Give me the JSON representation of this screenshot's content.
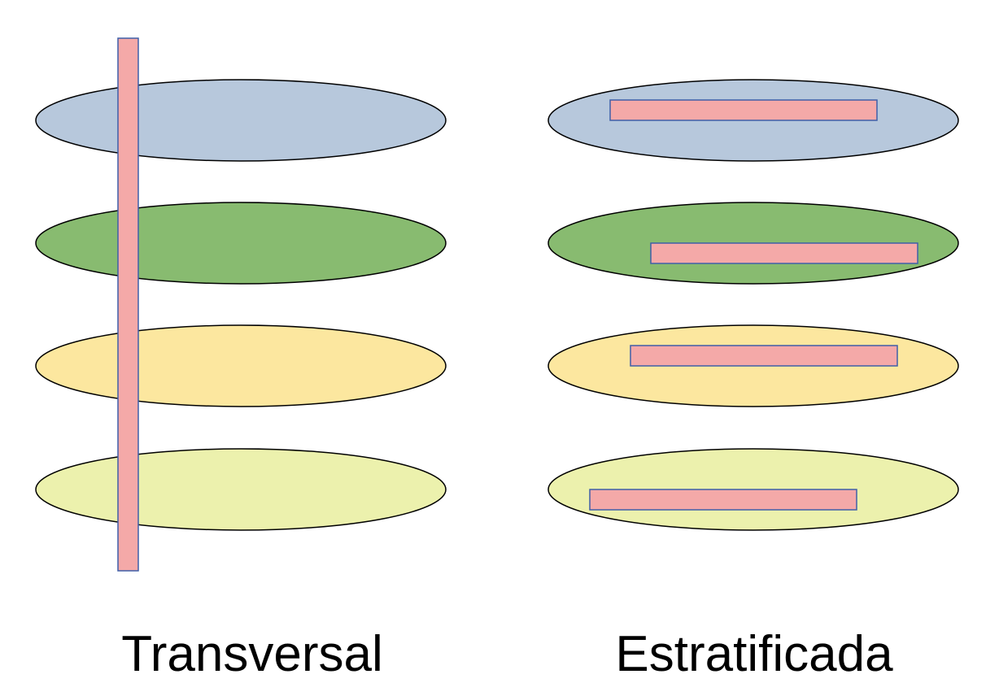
{
  "panels": [
    {
      "label": "Transversal",
      "layers": [
        {
          "color": "#b7c8dc"
        },
        {
          "color": "#88bb70"
        },
        {
          "color": "#fce79f"
        },
        {
          "color": "#ecf1ad"
        }
      ]
    },
    {
      "label": "Estratificada",
      "layers": [
        {
          "color": "#b7c8dc"
        },
        {
          "color": "#88bb70"
        },
        {
          "color": "#fce79f"
        },
        {
          "color": "#ecf1ad"
        }
      ]
    }
  ],
  "sample_bar": {
    "fill": "#f4a9a8",
    "stroke": "#3f5fa8"
  },
  "ellipse_stroke": "#000000"
}
